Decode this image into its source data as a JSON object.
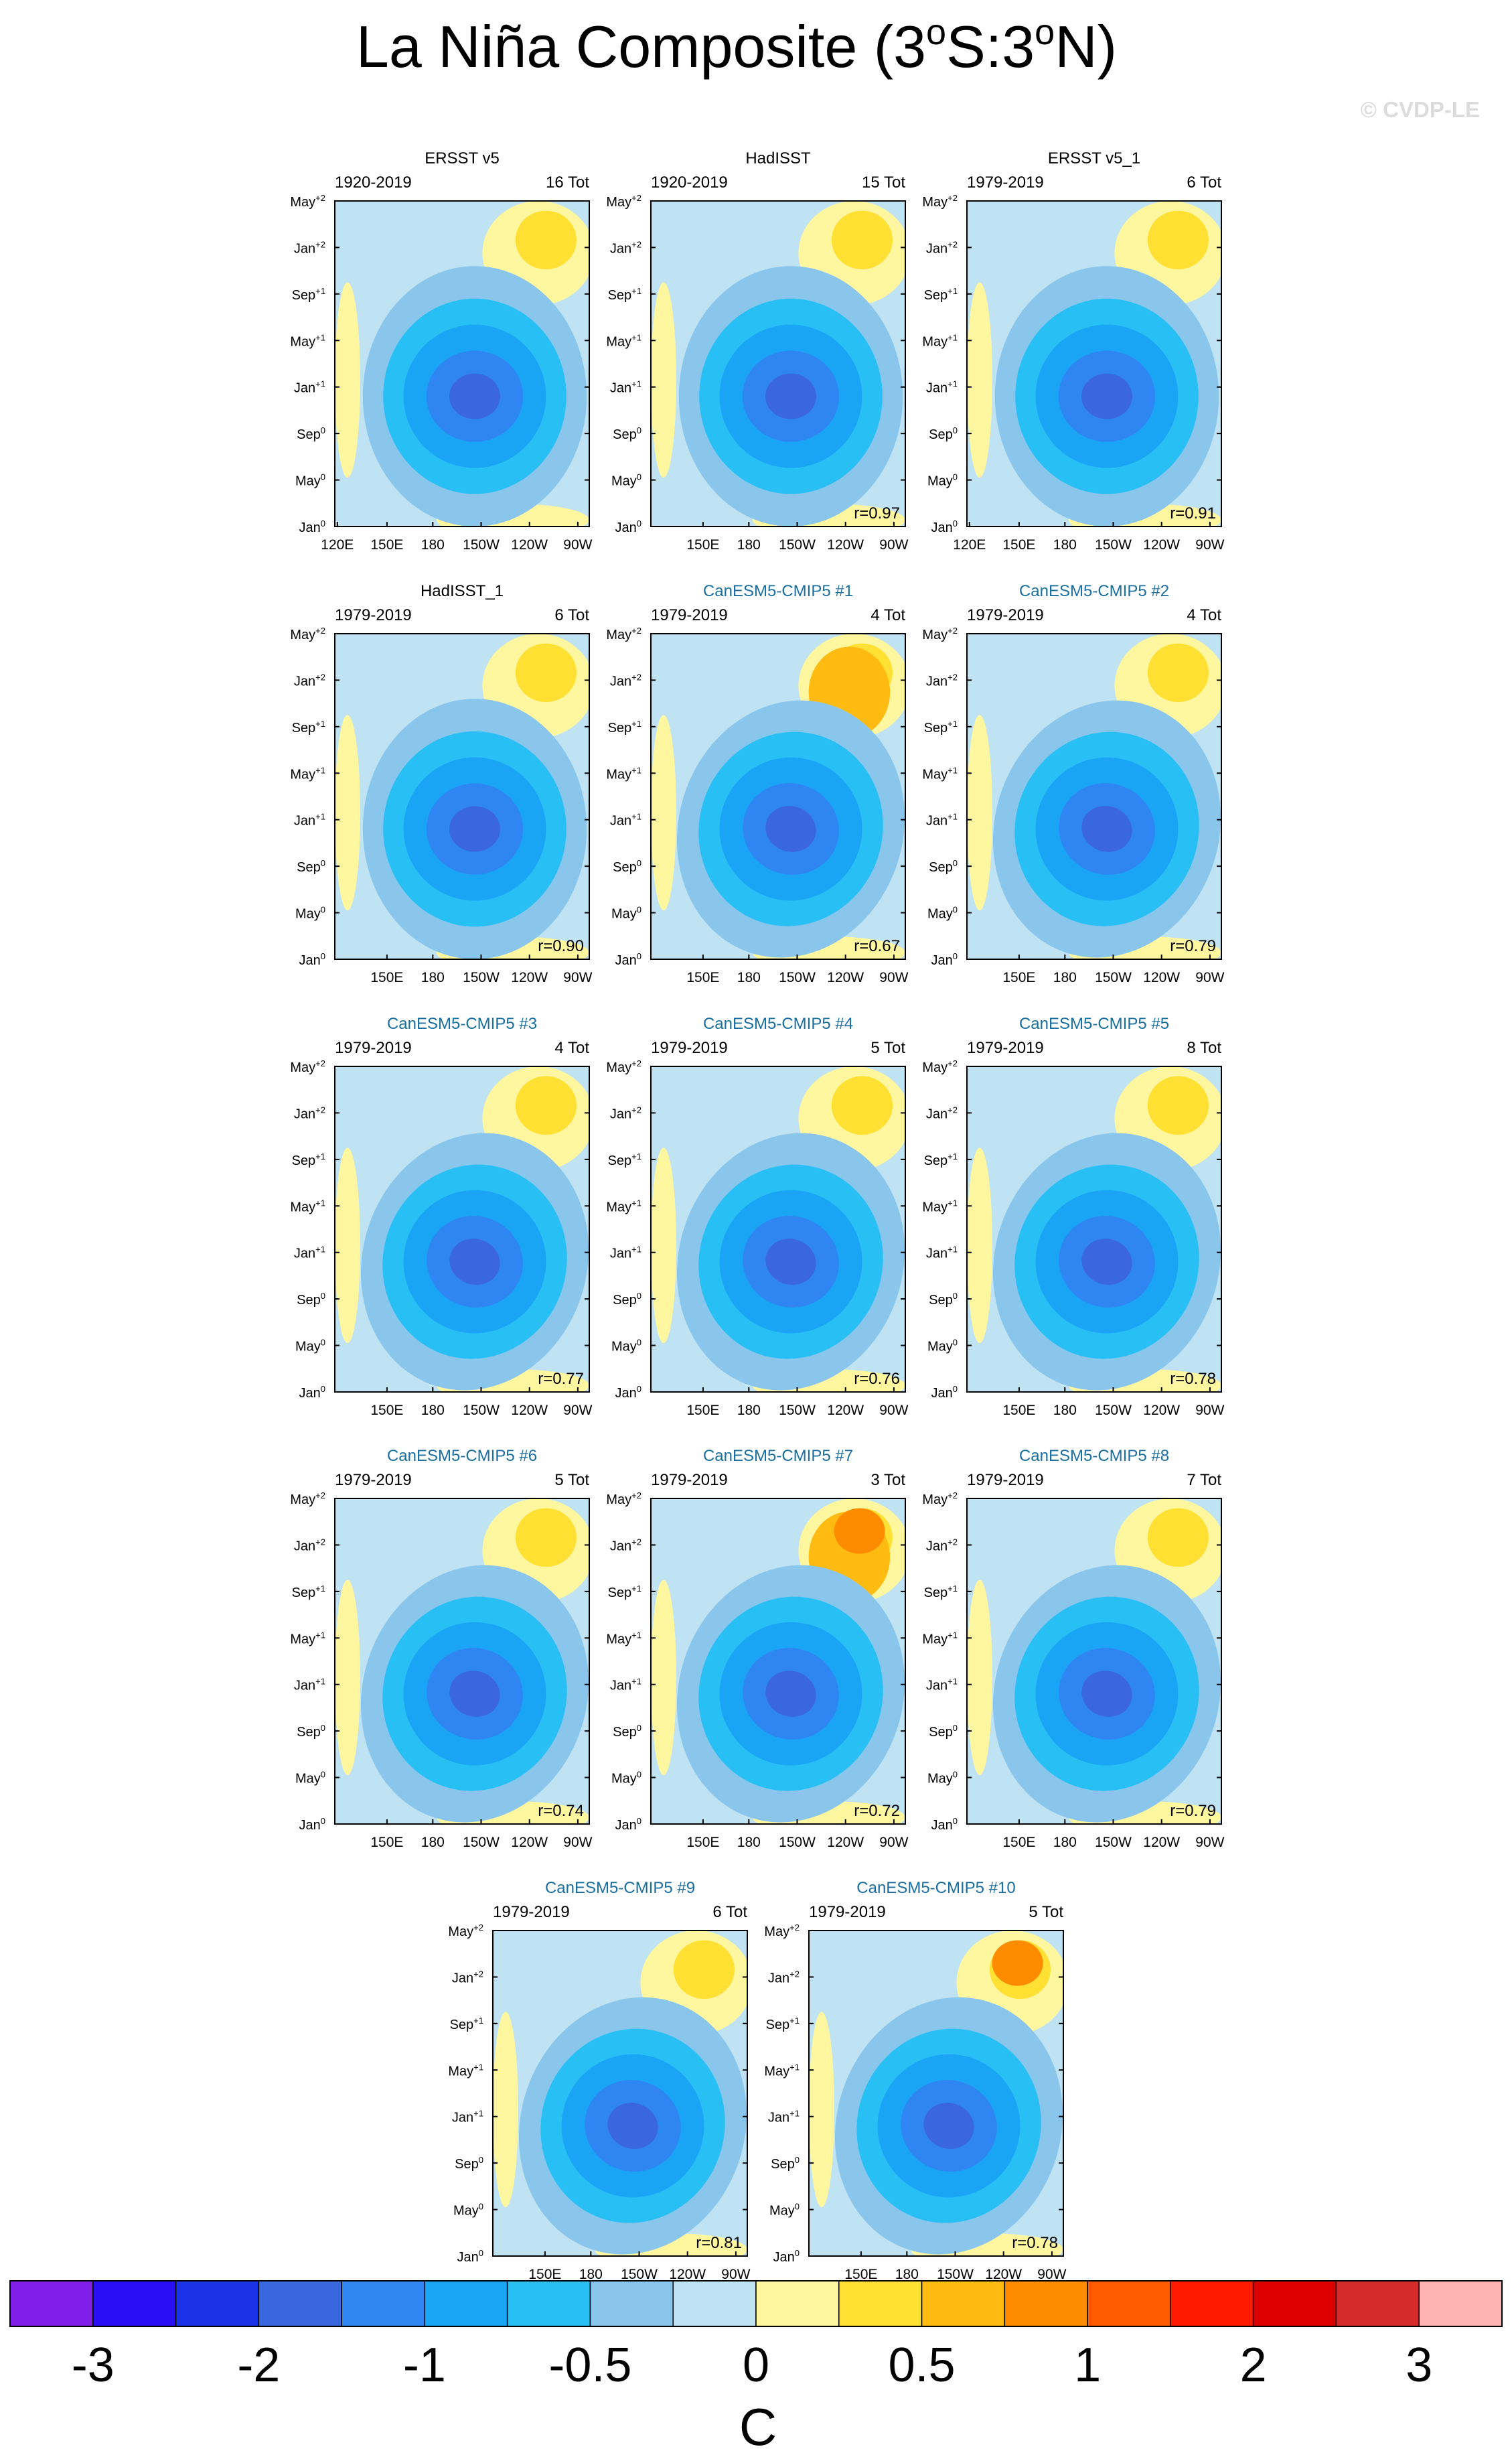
{
  "figure": {
    "title_main": "La Niña Composite (3",
    "title_sup1": "o",
    "title_mid": "S:3",
    "title_sup2": "o",
    "title_end": "N)",
    "credit": "© CVDP-LE",
    "colorbar_units": "C"
  },
  "colors": {
    "blue_text": "#1a6fa0",
    "levels": [
      "#7f1fe8",
      "#2a0ef5",
      "#1c32e8",
      "#3a66e0",
      "#2f86f2",
      "#1aa4f5",
      "#28bff5",
      "#8ac6ec",
      "#bfe3f2",
      "#fff7a0",
      "#ffe033",
      "#ffbb11",
      "#ff8c00",
      "#ff5a00",
      "#ff1a00",
      "#dd0000",
      "#d42a2a",
      "#ffb2b2"
    ]
  },
  "chart_data": {
    "type": "heatmap",
    "colorbar_labels": [
      "-3",
      "-2",
      "-1",
      "-0.5",
      "0",
      "0.5",
      "1",
      "2",
      "3"
    ],
    "y_ticks": [
      {
        "label": "Jan",
        "sup": "0"
      },
      {
        "label": "May",
        "sup": "0"
      },
      {
        "label": "Sep",
        "sup": "0"
      },
      {
        "label": "Jan",
        "sup": "+1"
      },
      {
        "label": "May",
        "sup": "+1"
      },
      {
        "label": "Sep",
        "sup": "+1"
      },
      {
        "label": "Jan",
        "sup": "+2"
      },
      {
        "label": "May",
        "sup": "+2"
      }
    ],
    "x_ticks_full": [
      "120E",
      "150E",
      "180",
      "150W",
      "120W",
      "90W"
    ],
    "x_ticks_short": [
      "150E",
      "180",
      "150W",
      "120W",
      "90W"
    ],
    "panels": [
      {
        "name": "ERSST v5",
        "period": "1920-2019",
        "count": "16 Tot",
        "r": "",
        "blue": false,
        "full_x": true
      },
      {
        "name": "HadISST",
        "period": "1920-2019",
        "count": "15 Tot",
        "r": "r=0.97",
        "blue": false,
        "full_x": false
      },
      {
        "name": "ERSST v5_1",
        "period": "1979-2019",
        "count": "6 Tot",
        "r": "r=0.91",
        "blue": false,
        "full_x": true
      },
      {
        "name": "HadISST_1",
        "period": "1979-2019",
        "count": "6 Tot",
        "r": "r=0.90",
        "blue": false,
        "full_x": false
      },
      {
        "name": "CanESM5-CMIP5 #1",
        "period": "1979-2019",
        "count": "4 Tot",
        "r": "r=0.67",
        "blue": true,
        "full_x": false
      },
      {
        "name": "CanESM5-CMIP5 #2",
        "period": "1979-2019",
        "count": "4 Tot",
        "r": "r=0.79",
        "blue": true,
        "full_x": false
      },
      {
        "name": "CanESM5-CMIP5 #3",
        "period": "1979-2019",
        "count": "4 Tot",
        "r": "r=0.77",
        "blue": true,
        "full_x": false
      },
      {
        "name": "CanESM5-CMIP5 #4",
        "period": "1979-2019",
        "count": "5 Tot",
        "r": "r=0.76",
        "blue": true,
        "full_x": false
      },
      {
        "name": "CanESM5-CMIP5 #5",
        "period": "1979-2019",
        "count": "8 Tot",
        "r": "r=0.78",
        "blue": true,
        "full_x": false
      },
      {
        "name": "CanESM5-CMIP5 #6",
        "period": "1979-2019",
        "count": "5 Tot",
        "r": "r=0.74",
        "blue": true,
        "full_x": false
      },
      {
        "name": "CanESM5-CMIP5 #7",
        "period": "1979-2019",
        "count": "3 Tot",
        "r": "r=0.72",
        "blue": true,
        "full_x": false
      },
      {
        "name": "CanESM5-CMIP5 #8",
        "period": "1979-2019",
        "count": "7 Tot",
        "r": "r=0.79",
        "blue": true,
        "full_x": false
      },
      {
        "name": "CanESM5-CMIP5 #9",
        "period": "1979-2019",
        "count": "6 Tot",
        "r": "r=0.81",
        "blue": true,
        "full_x": false
      },
      {
        "name": "CanESM5-CMIP5 #10",
        "period": "1979-2019",
        "count": "5 Tot",
        "r": "r=0.78",
        "blue": true,
        "full_x": false
      }
    ]
  }
}
